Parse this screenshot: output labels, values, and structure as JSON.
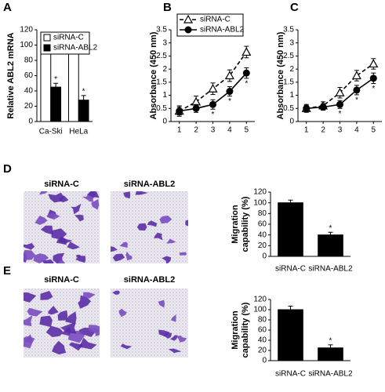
{
  "chart_data": [
    {
      "type": "bar",
      "label": "A",
      "ylabel": "Relative ABL2 mRNA",
      "categories": [
        "Ca-Ski",
        "HeLa"
      ],
      "series": [
        {
          "name": "siRNA-C",
          "color": "#ffffff",
          "values": [
            100,
            100
          ],
          "errors": [
            6,
            7
          ],
          "significance": [
            null,
            null
          ]
        },
        {
          "name": "siRNA-ABL2",
          "color": "#000000",
          "values": [
            45,
            28
          ],
          "errors": [
            5,
            6
          ],
          "significance": [
            "*",
            "*"
          ]
        }
      ],
      "ylim": [
        0,
        120
      ],
      "yticks": [
        0,
        20,
        40,
        60,
        80,
        100,
        120
      ]
    },
    {
      "type": "line",
      "label": "B",
      "ylabel": "Absorbance (450 nm)",
      "categories": [
        "1",
        "2",
        "3",
        "4",
        "5"
      ],
      "series": [
        {
          "name": "siRNA-C",
          "color": "#000000",
          "dash": true,
          "marker": "triangle-open",
          "values": [
            0.4,
            0.75,
            1.25,
            1.75,
            2.65
          ],
          "errors": [
            0.2,
            0.22,
            0.22,
            0.22,
            0.22
          ],
          "significance": [
            null,
            null,
            null,
            null,
            null
          ]
        },
        {
          "name": "siRNA-ABL2",
          "color": "#000000",
          "dash": false,
          "marker": "circle",
          "values": [
            0.4,
            0.5,
            0.65,
            1.15,
            1.85
          ],
          "errors": [
            0.15,
            0.15,
            0.18,
            0.18,
            0.2
          ],
          "significance": [
            null,
            null,
            "*",
            "*",
            "*"
          ]
        }
      ],
      "ylim": [
        0,
        3.5
      ],
      "yticks": [
        0,
        0.5,
        1,
        1.5,
        2,
        2.5,
        3,
        3.5
      ]
    },
    {
      "type": "line",
      "label": "C",
      "ylabel": "Absorbance (450 nm)",
      "categories": [
        "1",
        "2",
        "3",
        "4",
        "5"
      ],
      "series": [
        {
          "name": "siRNA-C",
          "color": "#000000",
          "dash": true,
          "marker": "triangle-open",
          "values": [
            0.5,
            0.6,
            1.1,
            1.75,
            2.2
          ],
          "errors": [
            0.15,
            0.15,
            0.2,
            0.2,
            0.2
          ],
          "significance": [
            null,
            null,
            null,
            null,
            null
          ]
        },
        {
          "name": "siRNA-ABL2",
          "color": "#000000",
          "dash": false,
          "marker": "circle",
          "values": [
            0.5,
            0.55,
            0.65,
            1.2,
            1.65
          ],
          "errors": [
            0.12,
            0.12,
            0.15,
            0.18,
            0.2
          ],
          "significance": [
            null,
            null,
            "*",
            "*",
            "*"
          ]
        }
      ],
      "ylim": [
        0,
        3.5
      ],
      "yticks": [
        0,
        0.5,
        1,
        1.5,
        2,
        2.5,
        3,
        3.5
      ]
    },
    {
      "type": "bar",
      "label": "D",
      "image_labels": [
        "siRNA-C",
        "siRNA-ABL2"
      ],
      "ylabel": [
        "Migration",
        "capability (%)"
      ],
      "categories": [
        "siRNA-C",
        "siRNA-ABL2"
      ],
      "series": [
        {
          "color": "#000000",
          "values": [
            100,
            40
          ],
          "errors": [
            5,
            5
          ],
          "significance": [
            null,
            "*"
          ]
        }
      ],
      "ylim": [
        0,
        120
      ],
      "yticks": [
        0,
        20,
        40,
        60,
        80,
        100,
        120
      ]
    },
    {
      "type": "bar",
      "label": "E",
      "image_labels": [
        "siRNA-C",
        "siRNA-ABL2"
      ],
      "ylabel": [
        "Migration",
        "capability (%)"
      ],
      "categories": [
        "siRNA-C",
        "siRNA-ABL2"
      ],
      "series": [
        {
          "color": "#000000",
          "values": [
            100,
            25
          ],
          "errors": [
            7,
            6
          ],
          "significance": [
            null,
            "*"
          ]
        }
      ],
      "ylim": [
        0,
        120
      ],
      "yticks": [
        0,
        20,
        40,
        60,
        80,
        100,
        120
      ]
    }
  ]
}
